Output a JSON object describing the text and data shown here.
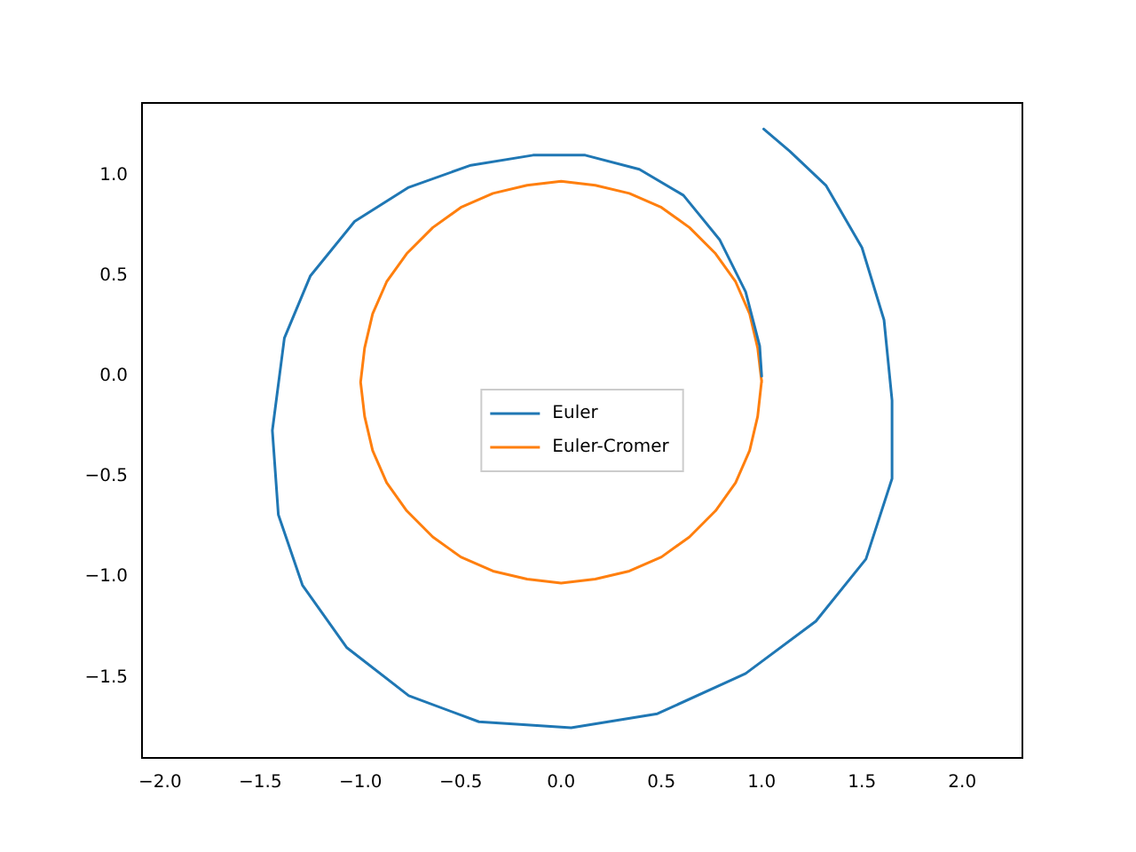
{
  "chart_data": {
    "type": "line",
    "legend": "center",
    "grid": false,
    "marker": "none",
    "line_style": "solid",
    "xlim": [
      -2.09,
      2.3
    ],
    "ylim": [
      -1.9,
      1.36
    ],
    "xticks": [
      {
        "value": -2,
        "label": "−2.0"
      },
      {
        "value": -1.5,
        "label": "−1.5"
      },
      {
        "value": -1,
        "label": "−1.0"
      },
      {
        "value": -0.5,
        "label": "−0.5"
      },
      {
        "value": 0,
        "label": "0.0"
      },
      {
        "value": 0.5,
        "label": "0.5"
      },
      {
        "value": 1,
        "label": "1.0"
      },
      {
        "value": 1.5,
        "label": "1.5"
      },
      {
        "value": 2,
        "label": "2.0"
      }
    ],
    "yticks": [
      {
        "value": -1.5,
        "label": "−1.5"
      },
      {
        "value": -1,
        "label": "−1.0"
      },
      {
        "value": -0.5,
        "label": "−0.5"
      },
      {
        "value": 0,
        "label": "0.0"
      },
      {
        "value": 0.5,
        "label": "0.5"
      },
      {
        "value": 1,
        "label": "1.0"
      }
    ],
    "series": [
      {
        "name": "Euler",
        "color": "#1f77b4",
        "x": [
          1,
          0.99,
          0.92,
          0.79,
          0.61,
          0.39,
          0.12,
          -0.14,
          -0.45,
          -0.76,
          -1.03,
          -1.25,
          -1.38,
          -1.44,
          -1.41,
          -1.29,
          -1.07,
          -0.76,
          -0.41,
          0.05,
          0.48,
          0.92,
          1.27,
          1.52,
          1.65,
          1.65,
          1.61,
          1.5,
          1.32,
          1.14,
          1.01
        ],
        "values": [
          0,
          0.15,
          0.42,
          0.68,
          0.9,
          1.03,
          1.1,
          1.1,
          1.05,
          0.94,
          0.77,
          0.5,
          0.19,
          -0.27,
          -0.69,
          -1.04,
          -1.35,
          -1.59,
          -1.72,
          -1.75,
          -1.68,
          -1.48,
          -1.22,
          -0.91,
          -0.51,
          -0.12,
          0.28,
          0.64,
          0.95,
          1.12,
          1.23
        ]
      },
      {
        "name": "Euler-Cromer",
        "color": "#ff7f0e",
        "x": [
          1,
          0.98,
          0.94,
          0.87,
          0.77,
          0.64,
          0.5,
          0.34,
          0.17,
          0,
          -0.17,
          -0.34,
          -0.5,
          -0.64,
          -0.77,
          -0.87,
          -0.94,
          -0.98,
          -1,
          -0.98,
          -0.94,
          -0.87,
          -0.77,
          -0.64,
          -0.5,
          -0.34,
          -0.17,
          0,
          0.17,
          0.34,
          0.5,
          0.64,
          0.77,
          0.87,
          0.94,
          0.98,
          1
        ],
        "values": [
          -0.03,
          0.14,
          0.31,
          0.47,
          0.61,
          0.74,
          0.84,
          0.91,
          0.95,
          0.97,
          0.95,
          0.91,
          0.84,
          0.74,
          0.61,
          0.47,
          0.31,
          0.14,
          -0.03,
          -0.2,
          -0.37,
          -0.53,
          -0.67,
          -0.8,
          -0.9,
          -0.97,
          -1.01,
          -1.03,
          -1.01,
          -0.97,
          -0.9,
          -0.8,
          -0.67,
          -0.53,
          -0.37,
          -0.2,
          -0.02
        ]
      }
    ]
  }
}
